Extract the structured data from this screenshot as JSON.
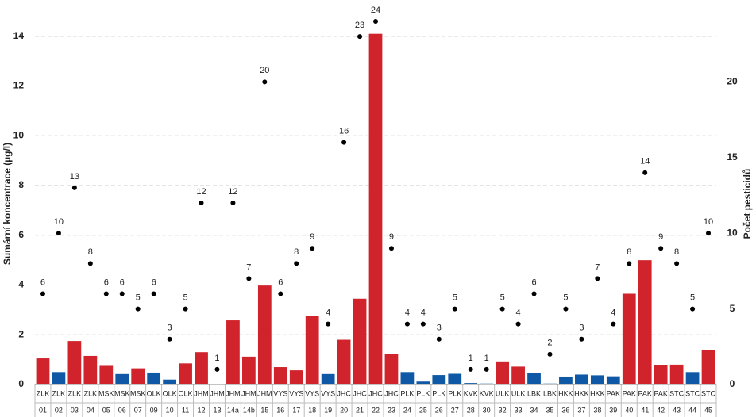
{
  "chart_data": {
    "type": "bar",
    "y_label": "Sumární koncentrace (µg/l)",
    "y2_label": "Počet pesticidů",
    "categories": [
      "01",
      "02",
      "03",
      "04",
      "05",
      "06",
      "07",
      "09",
      "10",
      "11",
      "12",
      "13",
      "14a",
      "14b",
      "15",
      "16",
      "17",
      "18",
      "19",
      "20",
      "21",
      "22",
      "23",
      "24",
      "25",
      "26",
      "27",
      "28",
      "30",
      "32",
      "33",
      "34",
      "35",
      "36",
      "37",
      "38",
      "39",
      "40",
      "41",
      "42",
      "43",
      "44",
      "45"
    ],
    "regions": [
      "ZLK",
      "ZLK",
      "ZLK",
      "ZLK",
      "MSK",
      "MSK",
      "MSK",
      "OLK",
      "OLK",
      "OLK",
      "JHM",
      "JHM",
      "JHM",
      "JHM",
      "JHM",
      "VYS",
      "VYS",
      "VYS",
      "VYS",
      "JHC",
      "JHC",
      "JHC",
      "JHC",
      "PLK",
      "PLK",
      "PLK",
      "PLK",
      "KVK",
      "KVK",
      "ULK",
      "ULK",
      "LBK",
      "LBK",
      "HKK",
      "HKK",
      "HKK",
      "PAK",
      "PAK",
      "PAK",
      "PAK",
      "STC",
      "STC",
      "STC"
    ],
    "series": [
      {
        "type": "bar",
        "values": [
          1.05,
          0.5,
          1.75,
          1.15,
          0.75,
          0.42,
          0.65,
          0.48,
          0.2,
          0.85,
          1.3,
          0.03,
          2.58,
          1.12,
          3.98,
          0.7,
          0.57,
          2.75,
          0.42,
          1.8,
          3.45,
          14.1,
          1.22,
          0.5,
          0.12,
          0.38,
          0.43,
          0.06,
          0.04,
          0.93,
          0.72,
          0.45,
          0.04,
          0.32,
          0.4,
          0.37,
          0.33,
          3.65,
          5.0,
          0.78,
          0.8,
          0.5,
          1.4
        ],
        "colors": [
          "#d0232b",
          "#0e58a6",
          "#d0232b",
          "#d0232b",
          "#d0232b",
          "#0e58a6",
          "#d0232b",
          "#0e58a6",
          "#0e58a6",
          "#d0232b",
          "#d0232b",
          "#0e58a6",
          "#d0232b",
          "#d0232b",
          "#d0232b",
          "#d0232b",
          "#d0232b",
          "#d0232b",
          "#0e58a6",
          "#d0232b",
          "#d0232b",
          "#d0232b",
          "#d0232b",
          "#0e58a6",
          "#0e58a6",
          "#0e58a6",
          "#0e58a6",
          "#0e58a6",
          "#0e58a6",
          "#d0232b",
          "#d0232b",
          "#0e58a6",
          "#0e58a6",
          "#0e58a6",
          "#0e58a6",
          "#0e58a6",
          "#0e58a6",
          "#d0232b",
          "#d0232b",
          "#d0232b",
          "#d0232b",
          "#0e58a6",
          "#d0232b"
        ]
      },
      {
        "type": "scatter",
        "axis": "y2",
        "color": "#000000",
        "values": [
          6,
          10,
          13,
          8,
          6,
          6,
          5,
          6,
          3,
          5,
          12,
          1,
          12,
          7,
          20,
          6,
          8,
          9,
          4,
          16,
          23,
          24,
          9,
          4,
          4,
          3,
          5,
          1,
          1,
          5,
          4,
          6,
          2,
          5,
          3,
          7,
          4,
          8,
          14,
          9,
          8,
          5,
          10
        ]
      }
    ],
    "ylim": [
      0,
      14.6
    ],
    "yticks": [
      0,
      2,
      4,
      6,
      8,
      10,
      12,
      14
    ],
    "y2lim": [
      0,
      24
    ],
    "y2ticks": [
      0,
      5,
      10,
      15,
      20
    ],
    "grid": true
  }
}
